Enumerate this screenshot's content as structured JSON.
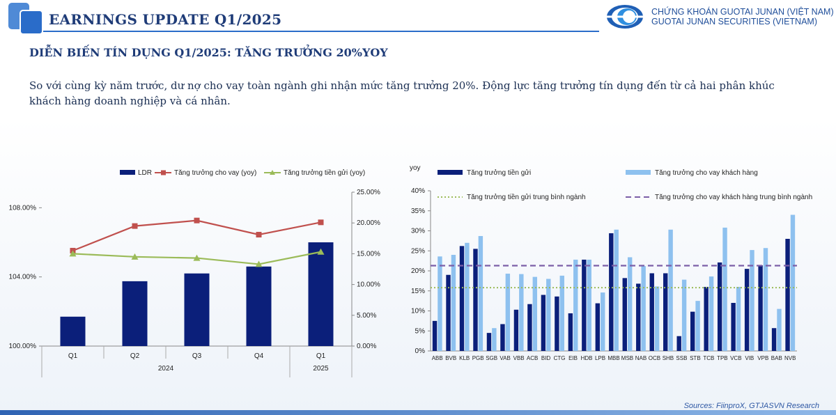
{
  "header": {
    "title": "EARNINGS UPDATE Q1/2025",
    "company_vn": "CHỨNG KHOÁN GUOTAI JUNAN (VIỆT NAM)",
    "company_en": "GUOTAI JUNAN SECURITIES (VIETNAM)",
    "colors": {
      "accent": "#1f3c78",
      "brand": "#2a6cc9"
    }
  },
  "section_title": "DIỄN BIẾN TÍN DỤNG Q1/2025: TĂNG TRƯỞNG 20%YOY",
  "intro": "So với cùng kỳ năm trước, dư nợ cho vay toàn ngành ghi nhận mức tăng trưởng 20%. Động lực tăng trưởng tín dụng đến từ cả hai phân khúc khách hàng doanh nghiệp và cá nhân.",
  "source": "Sources: FiinproX, GTJASVN Research",
  "chart_data": [
    {
      "type": "bar",
      "categories": [
        "Q1",
        "Q2",
        "Q3",
        "Q4",
        "Q1"
      ],
      "year_groups": [
        {
          "label": "2024",
          "span": [
            0,
            3
          ]
        },
        {
          "label": "2025",
          "span": [
            4,
            4
          ]
        }
      ],
      "series": [
        {
          "name": "LDR",
          "kind": "bar",
          "axis": "left",
          "color": "#0b1f7a",
          "values": [
            101.7,
            103.75,
            104.2,
            104.6,
            106.0
          ]
        },
        {
          "name": "Tăng trưởng cho vay (yoy)",
          "kind": "line",
          "axis": "right",
          "color": "#c0504d",
          "values": [
            15.5,
            19.5,
            20.4,
            18.1,
            20.1
          ]
        },
        {
          "name": "Tăng trưởng tiền gửi (yoy)",
          "kind": "line",
          "axis": "right",
          "color": "#9bbb59",
          "values": [
            15.0,
            14.5,
            14.3,
            13.3,
            15.3
          ]
        }
      ],
      "y_left": {
        "min": 100,
        "max": 108,
        "ticks": [
          "100.00%",
          "104.00%",
          "108.00%"
        ]
      },
      "y_right": {
        "min": 0,
        "max": 25,
        "ticks": [
          "0.00%",
          "5.00%",
          "10.00%",
          "15.00%",
          "20.00%",
          "25.00%"
        ]
      },
      "legend": "top",
      "grid": false
    },
    {
      "type": "bar",
      "ylabel": "yoy",
      "categories": [
        "ABB",
        "BVB",
        "KLB",
        "PGB",
        "SGB",
        "VAB",
        "VBB",
        "ACB",
        "BID",
        "CTG",
        "EIB",
        "HDB",
        "LPB",
        "MBB",
        "MSB",
        "NAB",
        "OCB",
        "SHB",
        "SSB",
        "STB",
        "TCB",
        "TPB",
        "VCB",
        "VIB",
        "VPB",
        "BAB",
        "NVB"
      ],
      "series": [
        {
          "name": "Tăng trưởng tiền gửi",
          "kind": "bar",
          "color": "#0b1f7a",
          "values": [
            7.5,
            19.0,
            26.2,
            25.5,
            4.5,
            6.7,
            10.3,
            11.7,
            14.0,
            13.6,
            9.4,
            22.8,
            11.9,
            29.4,
            18.2,
            16.8,
            19.4,
            19.4,
            3.7,
            9.8,
            16.0,
            22.1,
            12.0,
            20.5,
            21.4,
            5.7,
            28.0
          ]
        },
        {
          "name": "Tăng trưởng cho vay khách hàng",
          "kind": "bar",
          "color": "#8ec1ef",
          "values": [
            23.6,
            24.0,
            27.0,
            28.7,
            5.7,
            19.3,
            19.2,
            18.5,
            18.0,
            18.8,
            22.8,
            22.8,
            14.6,
            30.3,
            23.4,
            21.2,
            16.1,
            30.3,
            17.8,
            12.5,
            18.6,
            30.8,
            16.0,
            25.2,
            25.7,
            10.5,
            34.0
          ]
        },
        {
          "name": "Tăng trưởng tiền gửi trung bình ngành",
          "kind": "reference",
          "style": "dotted",
          "color": "#9bbb59",
          "value": 15.8
        },
        {
          "name": "Tăng trưởng cho vay khách hàng trung bình ngành",
          "kind": "reference",
          "style": "dashed",
          "color": "#7b5ea7",
          "value": 21.3
        }
      ],
      "y": {
        "min": 0,
        "max": 40,
        "ticks": [
          "0%",
          "5%",
          "10%",
          "15%",
          "20%",
          "25%",
          "30%",
          "35%",
          "40%"
        ]
      },
      "legend": "top",
      "grid": false
    }
  ]
}
